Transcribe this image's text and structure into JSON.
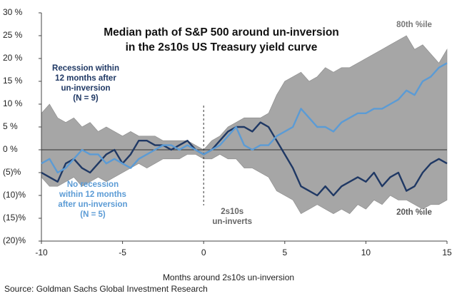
{
  "chart_data": {
    "type": "line",
    "title": [
      "Median path of S&P 500 around un-inversion",
      "in the 2s10s US Treasury yield curve"
    ],
    "x_label": "Months around 2s10s un-inversion",
    "source": "Source: Goldman Sachs Global Investment Research",
    "x": [
      -10,
      -9.5,
      -9,
      -8.5,
      -8,
      -7.5,
      -7,
      -6.5,
      -6,
      -5.5,
      -5,
      -4.5,
      -4,
      -3.5,
      -3,
      -2.5,
      -2,
      -1.5,
      -1,
      -0.5,
      0,
      0.5,
      1,
      1.5,
      2,
      2.5,
      3,
      3.5,
      4,
      4.5,
      5,
      5.5,
      6,
      6.5,
      7,
      7.5,
      8,
      8.5,
      9,
      9.5,
      10,
      10.5,
      11,
      11.5,
      12,
      12.5,
      13,
      13.5,
      14,
      14.5,
      15
    ],
    "band": {
      "color": "#a6a6a6",
      "upper_label": "80th %ile",
      "lower_label": "20th %ile",
      "upper": [
        8,
        10,
        7,
        6,
        7,
        5,
        6,
        4,
        5,
        4,
        3,
        4,
        3,
        3,
        3,
        2,
        2,
        2,
        2,
        1,
        0,
        2,
        3,
        5,
        6,
        7,
        7,
        7,
        8,
        12,
        15,
        16,
        17,
        15,
        16,
        18,
        17,
        18,
        18,
        19,
        20,
        21,
        22,
        23,
        24,
        25,
        22,
        23,
        21,
        19,
        22
      ],
      "lower": [
        -6,
        -8,
        -8,
        -7,
        -6,
        -8,
        -7,
        -6,
        -7,
        -6,
        -5,
        -4,
        -3,
        -4,
        -3,
        -2,
        -2,
        -2,
        -1,
        -1,
        -2,
        -2,
        -1,
        -2,
        -2,
        -4,
        -4,
        -5,
        -6,
        -9,
        -10,
        -11,
        -14,
        -13,
        -12,
        -13,
        -14,
        -13,
        -14,
        -12,
        -13,
        -11,
        -12,
        -10,
        -11,
        -11,
        -12,
        -13,
        -12,
        -12,
        -11
      ]
    },
    "series": [
      {
        "label": [
          "Recession within",
          "12 months after",
          "un-inversion",
          "(N = 9)"
        ],
        "color": "#1f3864",
        "values": [
          -5,
          -6,
          -7,
          -3,
          -2,
          -4,
          -5,
          -3,
          -1,
          0,
          -3,
          -1,
          2,
          2,
          1,
          1,
          0,
          1,
          2,
          0,
          -1,
          0,
          2,
          4,
          5,
          5,
          4,
          6,
          5,
          2,
          -1,
          -4,
          -8,
          -9,
          -10,
          -8,
          -10,
          -8,
          -7,
          -6,
          -7,
          -5,
          -8,
          -6,
          -5,
          -9,
          -8,
          -5,
          -3,
          -2,
          -3
        ]
      },
      {
        "label": [
          "No recession",
          "within 12 months",
          "after un-inversion",
          "(N = 5)"
        ],
        "color": "#5b9bd5",
        "values": [
          -3,
          -2,
          -5,
          -4,
          -2,
          0,
          -1,
          -1,
          -3,
          -2,
          -3,
          -4,
          -2,
          -1,
          0,
          1,
          1,
          0,
          1,
          0,
          -1,
          0,
          1,
          3,
          5,
          1,
          0,
          1,
          1,
          3,
          4,
          5,
          9,
          7,
          5,
          5,
          4,
          6,
          7,
          8,
          8,
          9,
          9,
          10,
          11,
          13,
          12,
          15,
          16,
          18,
          19
        ]
      }
    ],
    "vline": 0,
    "vline_label": [
      "2s10s",
      "un-inverts"
    ],
    "xlim": [
      -10,
      15
    ],
    "ylim": [
      -20,
      30
    ],
    "xticks": [
      -10,
      -5,
      0,
      5,
      10,
      15
    ],
    "yticks": [
      {
        "value": -20,
        "label": "(20)%"
      },
      {
        "value": -15,
        "label": "(15)%"
      },
      {
        "value": -10,
        "label": "(10)%"
      },
      {
        "value": -5,
        "label": "(5)%"
      },
      {
        "value": 0,
        "label": "0 %"
      },
      {
        "value": 5,
        "label": "5 %"
      },
      {
        "value": 10,
        "label": "10 %"
      },
      {
        "value": 15,
        "label": "15 %"
      },
      {
        "value": 20,
        "label": "20 %"
      },
      {
        "value": 25,
        "label": "25 %"
      },
      {
        "value": 30,
        "label": "30 %"
      }
    ]
  }
}
